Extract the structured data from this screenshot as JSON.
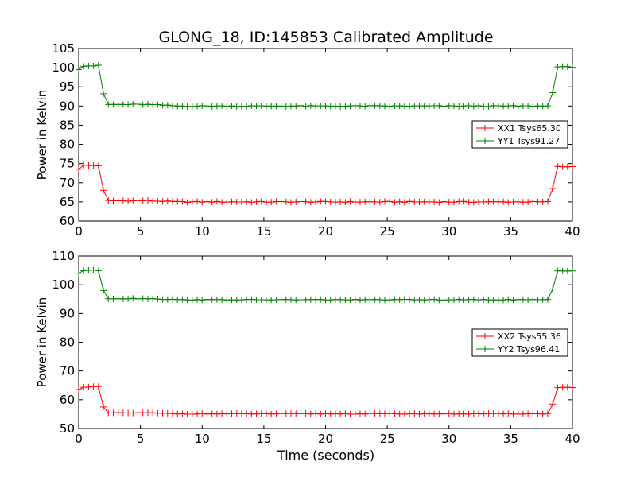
{
  "figure": {
    "title": "GLONG_18, ID:145853 Calibrated Amplitude",
    "xlabel": "Time (seconds)"
  },
  "chart_data": [
    {
      "type": "line",
      "name": "top",
      "xlim": [
        0,
        40
      ],
      "ylim": [
        60,
        105
      ],
      "ylabel": "Power in Kelvin",
      "xticks": [
        0,
        5,
        10,
        15,
        20,
        25,
        30,
        35,
        40
      ],
      "yticks": [
        60,
        65,
        70,
        75,
        80,
        85,
        90,
        95,
        100,
        105
      ],
      "legend_position": "right",
      "series": [
        {
          "name": "XX1 Tsys65.30",
          "color": "#ff0000",
          "levels": {
            "start": 73.5,
            "high": 74.5,
            "drop": 68,
            "low": 65.3,
            "low_late": 65.0,
            "rise": 68.5,
            "high_end": 74.2
          }
        },
        {
          "name": "YY1 Tsys91.27",
          "color": "#008000",
          "levels": {
            "start": 99.5,
            "high": 100.5,
            "drop": 93.2,
            "low": 90.4,
            "low_late": 90.0,
            "rise": 93.5,
            "high_end": 100.2
          }
        }
      ]
    },
    {
      "type": "line",
      "name": "bottom",
      "xlim": [
        0,
        40
      ],
      "ylim": [
        50,
        110
      ],
      "ylabel": "Power in Kelvin",
      "xticks": [
        0,
        5,
        10,
        15,
        20,
        25,
        30,
        35,
        40
      ],
      "yticks": [
        50,
        60,
        70,
        80,
        90,
        100,
        110
      ],
      "legend_position": "right",
      "series": [
        {
          "name": "XX2 Tsys55.36",
          "color": "#ff0000",
          "levels": {
            "start": 63.5,
            "high": 64.5,
            "drop": 57.5,
            "low": 55.4,
            "low_late": 55.1,
            "rise": 58.5,
            "high_end": 64.3
          }
        },
        {
          "name": "YY2 Tsys96.41",
          "color": "#008000",
          "levels": {
            "start": 104.0,
            "high": 105.0,
            "drop": 98.0,
            "low": 95.2,
            "low_late": 94.8,
            "rise": 98.5,
            "high_end": 104.8
          }
        }
      ]
    }
  ]
}
